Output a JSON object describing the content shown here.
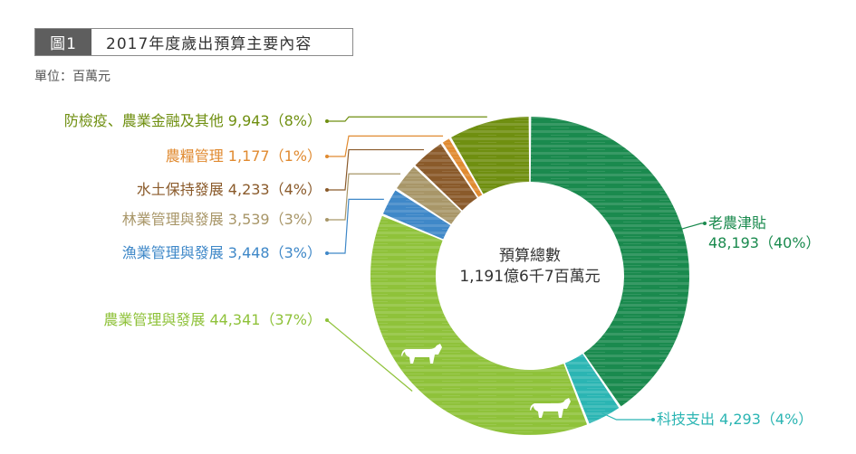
{
  "figure": {
    "tag": "圖1",
    "title": "2017年度歲出預算主要內容",
    "unit": "單位：百萬元"
  },
  "chart_data": {
    "type": "pie",
    "title": "2017年度歲出預算主要內容",
    "unit": "百萬元",
    "center_title": "預算總數",
    "center_value": "1,191億6千7百萬元",
    "slices": [
      {
        "name": "老農津貼",
        "value": 48193,
        "value_label": "48,193",
        "percent_label": "40%",
        "color": "#1a8a4e"
      },
      {
        "name": "科技支出",
        "value": 4293,
        "value_label": "4,293",
        "percent_label": "4%",
        "color": "#2bb5b3"
      },
      {
        "name": "農業管理與發展",
        "value": 44341,
        "value_label": "44,341",
        "percent_label": "37%",
        "color": "#8fc23a"
      },
      {
        "name": "漁業管理與發展",
        "value": 3448,
        "value_label": "3,448",
        "percent_label": "3%",
        "color": "#3f88c8"
      },
      {
        "name": "林業管理與發展",
        "value": 3539,
        "value_label": "3,539",
        "percent_label": "3%",
        "color": "#a89668"
      },
      {
        "name": "水土保持發展",
        "value": 4233,
        "value_label": "4,233",
        "percent_label": "4%",
        "color": "#8a5a2a"
      },
      {
        "name": "農糧管理",
        "value": 1177,
        "value_label": "1,177",
        "percent_label": "1%",
        "color": "#e08a30"
      },
      {
        "name": "防檢疫、農業金融及其他",
        "value": 9943,
        "value_label": "9,943",
        "percent_label": "8%",
        "color": "#6f8f10"
      }
    ]
  }
}
